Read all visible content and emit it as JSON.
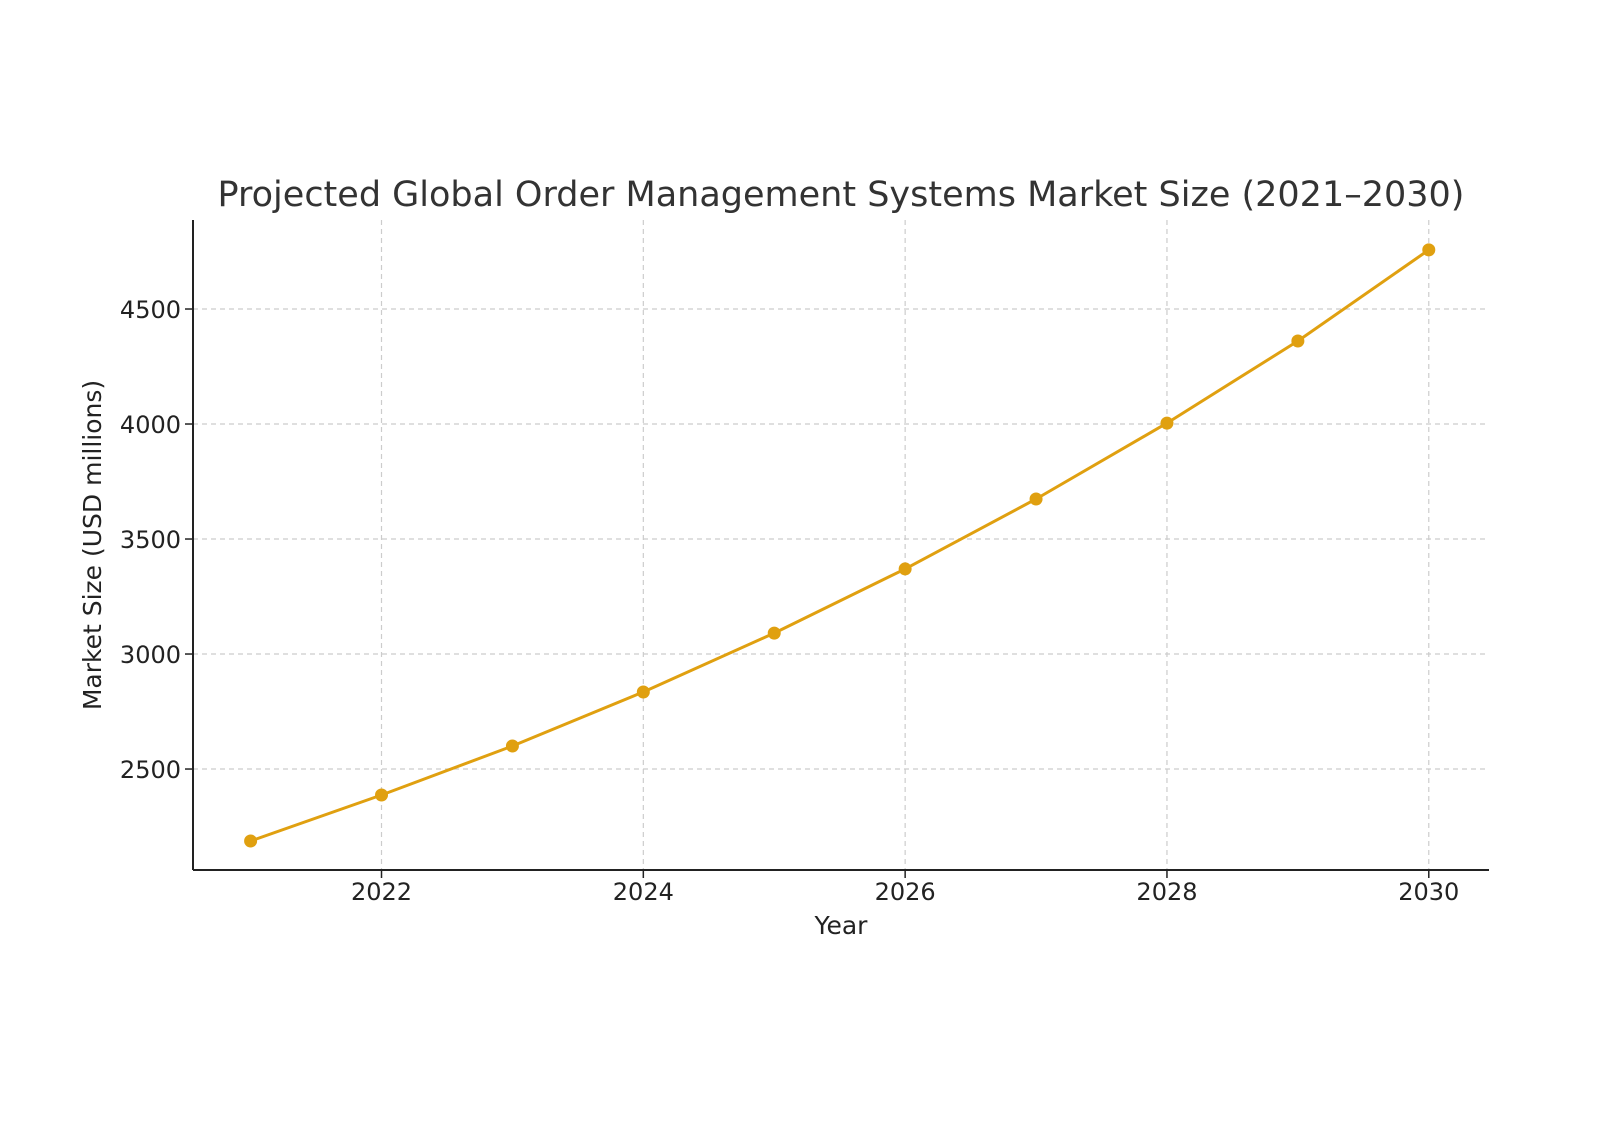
{
  "chart_data": {
    "type": "line",
    "title": "Projected Global Order Management Systems Market Size (2021–2030)",
    "xlabel": "Year",
    "ylabel": "Market Size (USD millions)",
    "x": [
      2021,
      2022,
      2023,
      2024,
      2025,
      2026,
      2027,
      2028,
      2029,
      2030
    ],
    "series": [
      {
        "values": [
          2187,
          2387,
          2600,
          2835,
          3091,
          3370,
          3674,
          4004,
          4361,
          4757
        ],
        "color": "#E0A010",
        "marker": "circle"
      }
    ],
    "xticks": [
      "2022",
      "2024",
      "2026",
      "2028",
      "2030"
    ],
    "yticks": [
      "2500",
      "3000",
      "3500",
      "4000",
      "4500"
    ],
    "xlim": [
      2020.56,
      2030.46
    ],
    "ylim": [
      2061,
      4887
    ],
    "grid": true
  }
}
